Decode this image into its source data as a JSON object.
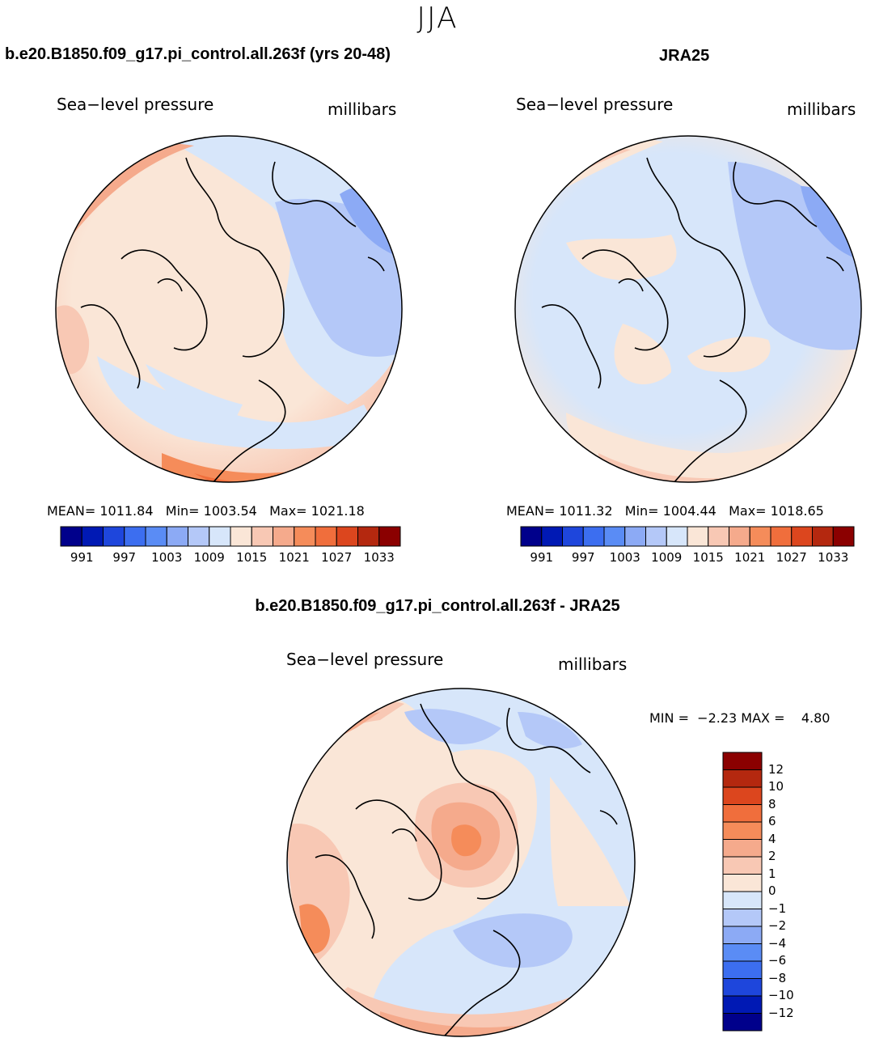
{
  "season": "JJA",
  "colors": {
    "abs_scale": [
      "#00008b",
      "#0019b4",
      "#1e46dc",
      "#3c6ef0",
      "#5a8cf5",
      "#8caaf5",
      "#b4c8f8",
      "#d7e6fa",
      "#fae6d7",
      "#f8c8b4",
      "#f5aa8c",
      "#f58c5a",
      "#f06e3c",
      "#dc461e",
      "#b4280f",
      "#8b0000"
    ],
    "diff_scale": [
      "#00008b",
      "#0019b4",
      "#1e46dc",
      "#3c6ef0",
      "#5a8cf5",
      "#8caaf5",
      "#b4c8f8",
      "#d7e6fa",
      "#fae6d7",
      "#f8c8b4",
      "#f5aa8c",
      "#f58c5a",
      "#f06e3c",
      "#dc461e",
      "#b4280f",
      "#8b0000"
    ]
  },
  "chart_data": [
    {
      "type": "heatmap",
      "title": "b.e20.B1850.f09_g17.pi_control.all.263f (yrs 20-48)",
      "left_label": "Sea−level pressure",
      "right_label": "millibars",
      "stats": {
        "mean_label": "MEAN=",
        "mean": "1011.84",
        "min_label": "Min=",
        "min": "1003.54",
        "max_label": "Max=",
        "max": "1021.18"
      },
      "colorbar_ticks": [
        "991",
        "997",
        "1003",
        "1009",
        "1015",
        "1021",
        "1027",
        "1033"
      ]
    },
    {
      "type": "heatmap",
      "title": "JRA25",
      "left_label": "Sea−level pressure",
      "right_label": "millibars",
      "stats": {
        "mean_label": "MEAN=",
        "mean": "1011.32",
        "min_label": "Min=",
        "min": "1004.44",
        "max_label": "Max=",
        "max": "1018.65"
      },
      "colorbar_ticks": [
        "991",
        "997",
        "1003",
        "1009",
        "1015",
        "1021",
        "1027",
        "1033"
      ]
    },
    {
      "type": "heatmap",
      "title": "b.e20.B1850.f09_g17.pi_control.all.263f - JRA25",
      "left_label": "Sea−level pressure",
      "right_label": "millibars",
      "stats": {
        "min_label": "MIN =",
        "min": "−2.23",
        "max_label": "MAX =",
        "max": "4.80"
      },
      "colorbar_ticks": [
        "12",
        "10",
        "8",
        "6",
        "4",
        "2",
        "1",
        "0",
        "−1",
        "−2",
        "−4",
        "−6",
        "−8",
        "−10",
        "−12"
      ]
    }
  ]
}
